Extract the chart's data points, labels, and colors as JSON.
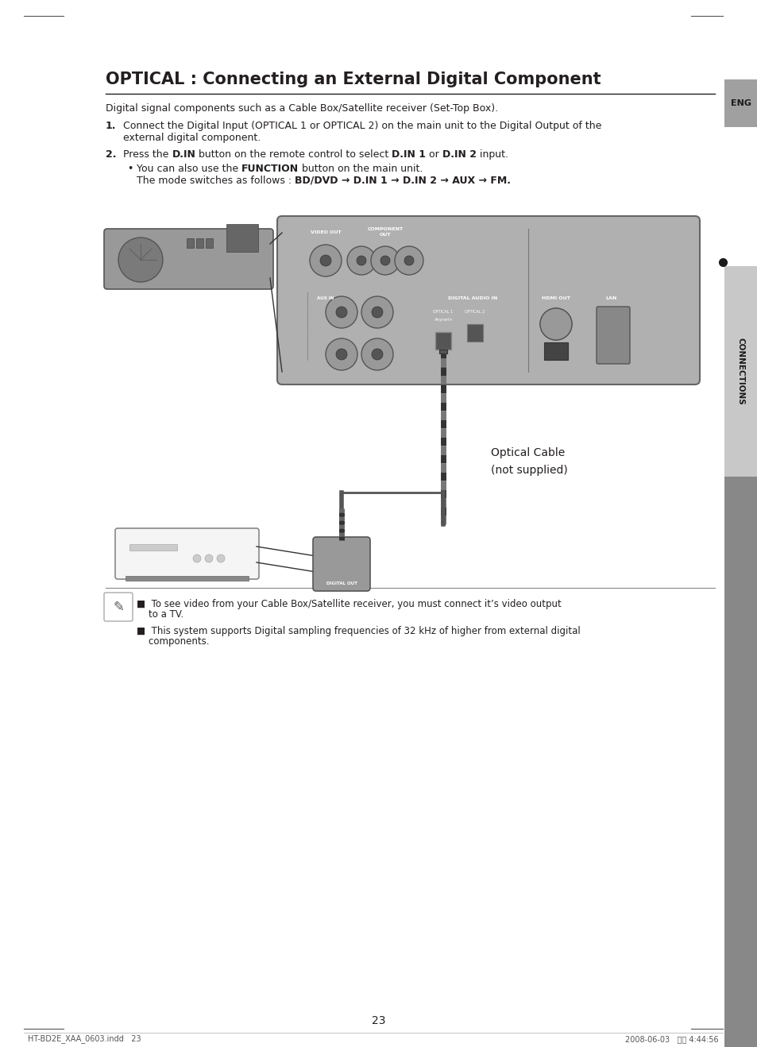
{
  "title": "OPTICAL : Connecting an External Digital Component",
  "background_color": "#ffffff",
  "text_color": "#231f20",
  "intro_text": "Digital signal components such as a Cable Box/Satellite receiver (Set-Top Box).",
  "step1_label": "1.",
  "step1_text": "Connect the Digital Input (OPTICAL 1 or OPTICAL 2) on the main unit to the Digital Output of the\nexternal digital component.",
  "step2_label": "2.",
  "optical_cable_label1": "Optical Cable",
  "optical_cable_label2": "(not supplied)",
  "note1a": "■  To see video from your Cable Box/Satellite receiver, you must connect it’s video output",
  "note1b": "    to a TV.",
  "note2a": "■  This system supports Digital sampling frequencies of 32 kHz of higher from external digital",
  "note2b": "    components.",
  "sidebar_eng_bg": "#aaaaaa",
  "sidebar_conn_bg": "#c8c8c8",
  "sidebar_dark_bg": "#888888",
  "page_number": "23",
  "footer_left": "HT-BD2E_XAA_0603.indd   23",
  "footer_right": "2008-06-03   오전 4:44:56"
}
